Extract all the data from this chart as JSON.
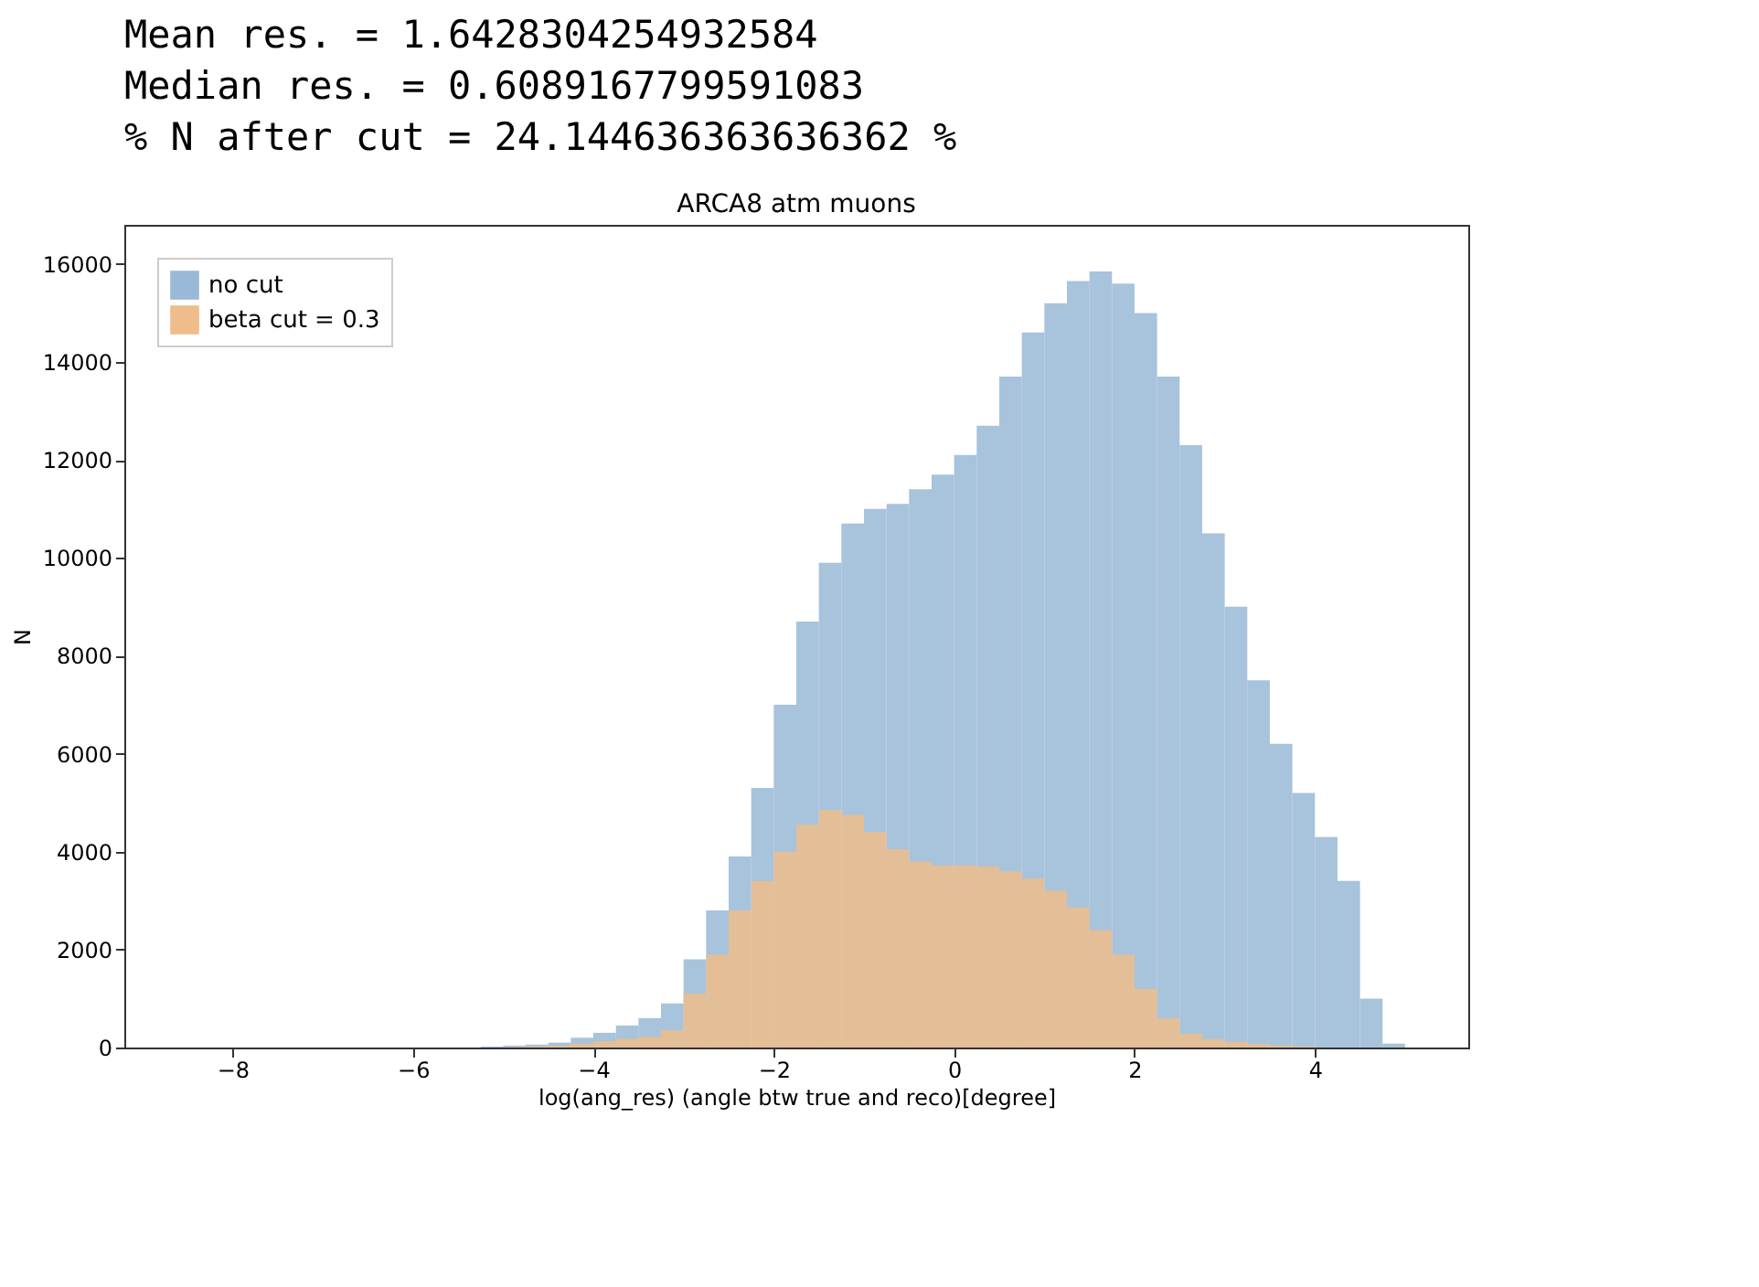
{
  "chart_data": {
    "type": "histogram",
    "title": "ARCA8 atm muons",
    "xlabel": "log(ang_res) (angle btw true and reco)[degree]",
    "ylabel": "N",
    "annotations": [
      "Mean res. =  1.6428304254932584",
      "Median res. =  0.6089167799591083",
      "% N after cut =  24.144636363636362 %"
    ],
    "bins": [
      -5.25,
      -5.0,
      -4.75,
      -4.5,
      -4.25,
      -4.0,
      -3.75,
      -3.5,
      -3.25,
      -3.0,
      -2.75,
      -2.5,
      -2.25,
      -2.0,
      -1.75,
      -1.5,
      -1.25,
      -1.0,
      -0.75,
      -0.5,
      -0.25,
      0.0,
      0.25,
      0.5,
      0.75,
      1.0,
      1.25,
      1.5,
      1.75,
      2.0,
      2.25,
      2.5,
      2.75,
      3.0,
      3.25,
      3.5,
      3.75,
      4.0,
      4.25,
      4.5,
      4.75,
      5.0
    ],
    "series": [
      {
        "name": "no cut",
        "color": "#99b9d6",
        "values": [
          20,
          40,
          60,
          100,
          200,
          300,
          450,
          600,
          900,
          1800,
          2800,
          3900,
          5300,
          7000,
          8700,
          9900,
          10700,
          11000,
          11100,
          11400,
          11700,
          12100,
          12700,
          13700,
          14600,
          15200,
          15650,
          15850,
          15600,
          15000,
          13700,
          12300,
          10500,
          9000,
          7500,
          6200,
          5200,
          4300,
          3400,
          1000,
          80
        ]
      },
      {
        "name": "beta cut = 0.3",
        "color": "#eebd8a",
        "values": [
          0,
          10,
          20,
          40,
          80,
          130,
          180,
          220,
          350,
          1100,
          1900,
          2800,
          3400,
          4000,
          4550,
          4850,
          4750,
          4400,
          4050,
          3800,
          3720,
          3720,
          3700,
          3600,
          3450,
          3200,
          2860,
          2400,
          1900,
          1200,
          600,
          280,
          170,
          120,
          70,
          40,
          20,
          0,
          0,
          0,
          0
        ]
      }
    ],
    "xlim": [
      -9.2,
      5.7
    ],
    "xticks": [
      -8,
      -6,
      -4,
      -2,
      0,
      2,
      4
    ],
    "ylim": [
      0,
      16800
    ],
    "yticks": [
      0,
      2000,
      4000,
      6000,
      8000,
      10000,
      12000,
      14000,
      16000
    ],
    "legend": "top left",
    "grid": false
  }
}
